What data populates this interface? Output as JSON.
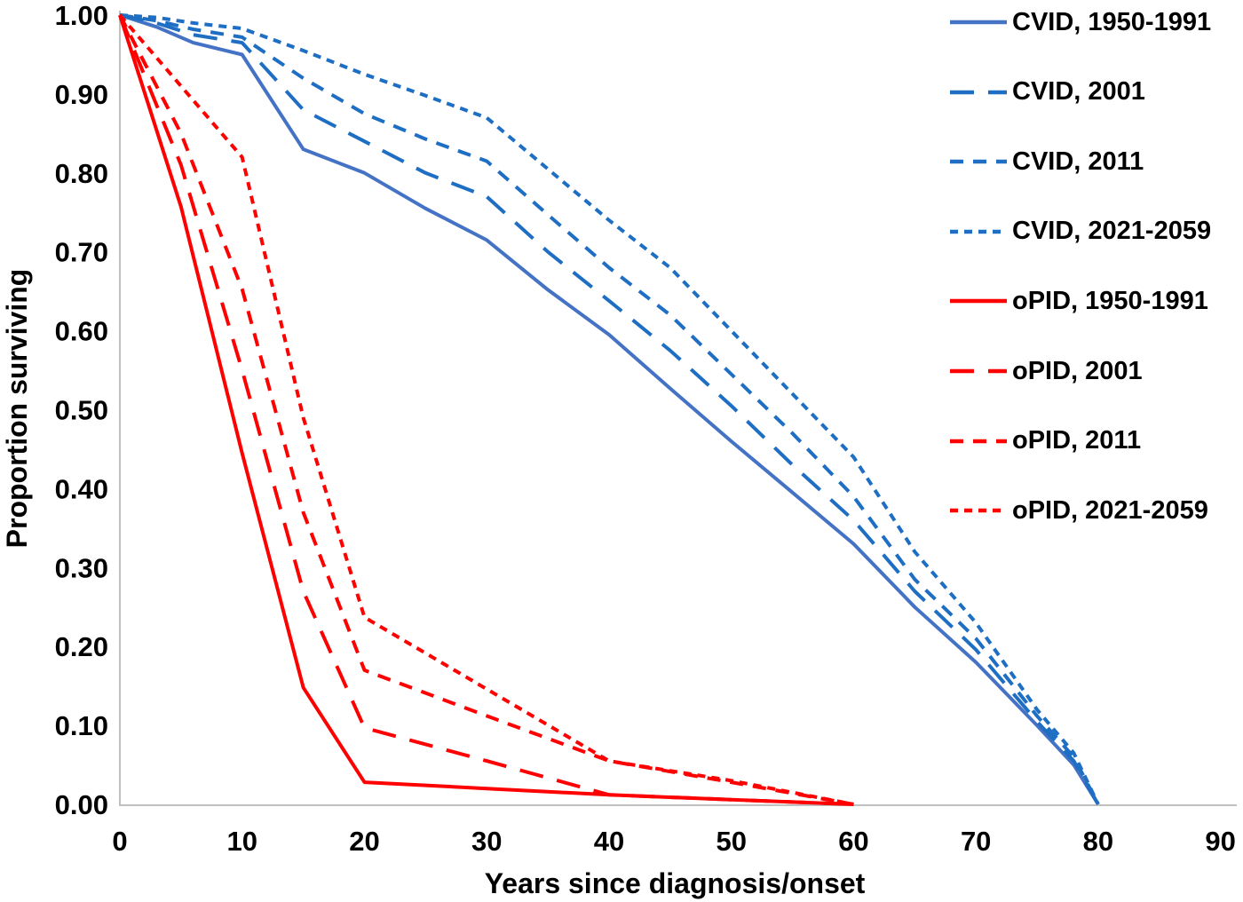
{
  "chart_data": {
    "type": "line",
    "title": "",
    "xlabel": "Years since diagnosis/onset",
    "ylabel": "Proportion surviving",
    "xlim": [
      0,
      90
    ],
    "ylim": [
      0.0,
      1.0
    ],
    "grid": false,
    "legend_position": "right",
    "x_ticks": [
      0,
      10,
      20,
      30,
      40,
      50,
      60,
      70,
      80,
      90
    ],
    "x_tick_labels": [
      "0",
      "10",
      "20",
      "30",
      "40",
      "50",
      "60",
      "70",
      "80",
      "90"
    ],
    "y_ticks": [
      1.0,
      0.9,
      0.8,
      0.7,
      0.6,
      0.5,
      0.4,
      0.3,
      0.2,
      0.1,
      0.0
    ],
    "y_tick_labels": [
      "1.00",
      "0.90",
      "0.80",
      "0.70",
      "0.60",
      "0.50",
      "0.40",
      "0.30",
      "0.20",
      "0.10",
      "0.00"
    ],
    "axis_color": "#c0c0c0",
    "text_color": "#000000",
    "series": [
      {
        "name": "CVID, 1950-1991",
        "color": "#4472C4",
        "dash": "solid",
        "points": [
          [
            0,
            1.0
          ],
          [
            3,
            0.985
          ],
          [
            6,
            0.965
          ],
          [
            10,
            0.95
          ],
          [
            15,
            0.83
          ],
          [
            20,
            0.8
          ],
          [
            25,
            0.755
          ],
          [
            30,
            0.715
          ],
          [
            35,
            0.652
          ],
          [
            40,
            0.595
          ],
          [
            45,
            0.527
          ],
          [
            50,
            0.46
          ],
          [
            55,
            0.395
          ],
          [
            60,
            0.33
          ],
          [
            65,
            0.25
          ],
          [
            70,
            0.18
          ],
          [
            75,
            0.1
          ],
          [
            78,
            0.05
          ],
          [
            80,
            0.0
          ]
        ]
      },
      {
        "name": "CVID, 2001",
        "color": "#1E6EC3",
        "dash": "long",
        "points": [
          [
            0,
            1.0
          ],
          [
            3,
            0.99
          ],
          [
            6,
            0.975
          ],
          [
            10,
            0.965
          ],
          [
            15,
            0.88
          ],
          [
            20,
            0.84
          ],
          [
            25,
            0.8
          ],
          [
            30,
            0.77
          ],
          [
            35,
            0.7
          ],
          [
            40,
            0.638
          ],
          [
            45,
            0.575
          ],
          [
            50,
            0.505
          ],
          [
            55,
            0.43
          ],
          [
            60,
            0.36
          ],
          [
            65,
            0.27
          ],
          [
            70,
            0.196
          ],
          [
            75,
            0.105
          ],
          [
            78,
            0.055
          ],
          [
            80,
            0.0
          ]
        ]
      },
      {
        "name": "CVID, 2011",
        "color": "#1E6EC3",
        "dash": "medium",
        "points": [
          [
            0,
            1.0
          ],
          [
            3,
            0.993
          ],
          [
            6,
            0.982
          ],
          [
            10,
            0.972
          ],
          [
            15,
            0.92
          ],
          [
            20,
            0.875
          ],
          [
            25,
            0.843
          ],
          [
            30,
            0.815
          ],
          [
            35,
            0.747
          ],
          [
            40,
            0.68
          ],
          [
            45,
            0.62
          ],
          [
            50,
            0.545
          ],
          [
            55,
            0.47
          ],
          [
            60,
            0.39
          ],
          [
            65,
            0.285
          ],
          [
            70,
            0.21
          ],
          [
            75,
            0.112
          ],
          [
            78,
            0.06
          ],
          [
            80,
            0.0
          ]
        ]
      },
      {
        "name": "CVID, 2021-2059",
        "color": "#1E6EC3",
        "dash": "short",
        "points": [
          [
            0,
            1.0
          ],
          [
            3,
            0.997
          ],
          [
            6,
            0.99
          ],
          [
            10,
            0.983
          ],
          [
            15,
            0.955
          ],
          [
            20,
            0.925
          ],
          [
            25,
            0.898
          ],
          [
            30,
            0.87
          ],
          [
            35,
            0.805
          ],
          [
            40,
            0.74
          ],
          [
            45,
            0.68
          ],
          [
            50,
            0.6
          ],
          [
            55,
            0.52
          ],
          [
            60,
            0.44
          ],
          [
            65,
            0.32
          ],
          [
            70,
            0.23
          ],
          [
            75,
            0.12
          ],
          [
            78,
            0.065
          ],
          [
            80,
            0.0
          ]
        ]
      },
      {
        "name": "oPID, 1950-1991",
        "color": "#FF0000",
        "dash": "solid",
        "points": [
          [
            0,
            1.0
          ],
          [
            5,
            0.757
          ],
          [
            10,
            0.445
          ],
          [
            15,
            0.148
          ],
          [
            20,
            0.028
          ],
          [
            30,
            0.02
          ],
          [
            40,
            0.012
          ],
          [
            50,
            0.006
          ],
          [
            60,
            0.0
          ]
        ]
      },
      {
        "name": "oPID, 2001",
        "color": "#FF0000",
        "dash": "long",
        "points": [
          [
            0,
            1.0
          ],
          [
            5,
            0.81
          ],
          [
            10,
            0.55
          ],
          [
            15,
            0.27
          ],
          [
            20,
            0.097
          ],
          [
            30,
            0.055
          ],
          [
            40,
            0.012
          ],
          [
            50,
            0.006
          ],
          [
            60,
            0.0
          ]
        ]
      },
      {
        "name": "oPID, 2011",
        "color": "#FF0000",
        "dash": "medium",
        "points": [
          [
            0,
            1.0
          ],
          [
            5,
            0.85
          ],
          [
            10,
            0.653
          ],
          [
            15,
            0.37
          ],
          [
            20,
            0.17
          ],
          [
            30,
            0.112
          ],
          [
            40,
            0.055
          ],
          [
            50,
            0.028
          ],
          [
            60,
            0.0
          ]
        ]
      },
      {
        "name": "oPID, 2021-2059",
        "color": "#FF0000",
        "dash": "short",
        "points": [
          [
            0,
            1.0
          ],
          [
            5,
            0.91
          ],
          [
            10,
            0.82
          ],
          [
            15,
            0.49
          ],
          [
            20,
            0.237
          ],
          [
            30,
            0.146
          ],
          [
            40,
            0.055
          ],
          [
            50,
            0.03
          ],
          [
            60,
            0.0
          ]
        ]
      }
    ]
  }
}
